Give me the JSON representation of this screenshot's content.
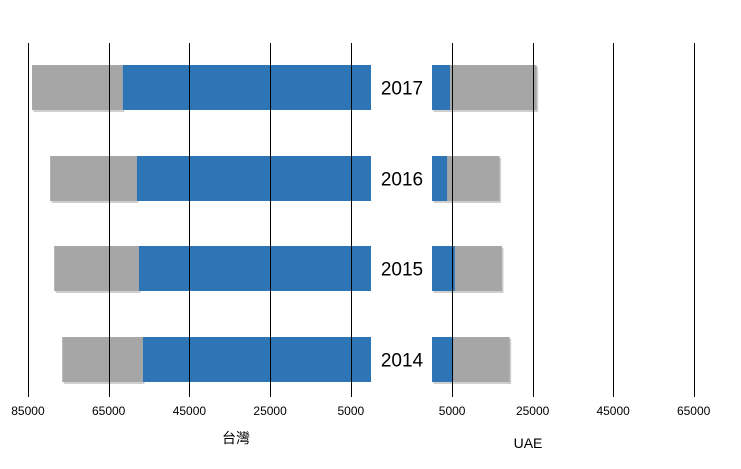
{
  "chart_data": {
    "type": "bar",
    "orientation": "horizontal",
    "layout": "back-to-back",
    "categories": [
      "2017",
      "2016",
      "2015",
      "2014"
    ],
    "colors": {
      "inner": "#2e75b6",
      "outer": "#a6a6a6"
    },
    "panels": [
      {
        "name": "台灣",
        "xlabel": "台灣",
        "direction": "reversed",
        "xlim": [
          0,
          85000
        ],
        "xticks": [
          85000,
          65000,
          45000,
          25000,
          5000
        ],
        "series": [
          {
            "values": [
              61500,
              58000,
              57500,
              56500
            ]
          },
          {
            "values": [
              22500,
              21500,
              21000,
              20000
            ]
          }
        ]
      },
      {
        "name": "UAE",
        "xlabel": "UAE",
        "direction": "normal",
        "xlim": [
          0,
          65000
        ],
        "xticks": [
          5000,
          25000,
          45000,
          65000
        ],
        "series": [
          {
            "values": [
              4500,
              3800,
              5700,
              5300
            ]
          },
          {
            "values": [
              21500,
              13000,
              11700,
              14000
            ]
          }
        ]
      }
    ]
  }
}
